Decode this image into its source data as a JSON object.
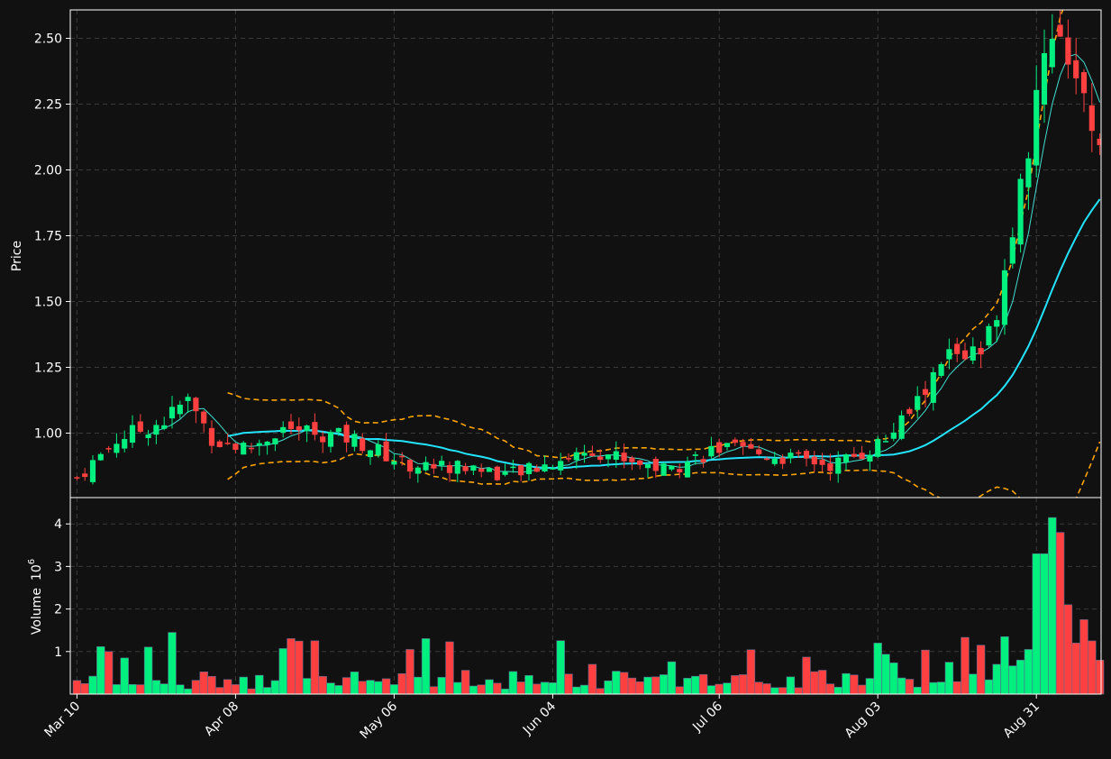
{
  "chart_data": [
    {
      "type": "candlestick",
      "ylabel": "Price",
      "ylim": [
        0.8,
        2.6
      ],
      "yticks": [
        "1.00",
        "1.25",
        "1.50",
        "1.75",
        "2.00",
        "2.25",
        "2.50"
      ],
      "xticks": [
        "Mar 10",
        "Apr 08",
        "May 06",
        "Jun 04",
        "Jul 06",
        "Aug 03",
        "Aug 31"
      ],
      "grid": true,
      "colors": {
        "up": "#00f080",
        "down": "#ff4040",
        "ma_fast": "#3fe0d0",
        "ma_slow": "#22e4ff",
        "band": "#ffa500",
        "background": "#111111"
      },
      "overlays": [
        {
          "name": "moving average (fast)",
          "style": "solid",
          "color": "#3fe0d0"
        },
        {
          "name": "moving average (slow)",
          "style": "solid",
          "color": "#22e4ff"
        },
        {
          "name": "upper band",
          "style": "dashed",
          "color": "#ffa500"
        },
        {
          "name": "lower band",
          "style": "dashed",
          "color": "#ffa500"
        }
      ]
    },
    {
      "type": "bar",
      "ylabel": "Volume",
      "yunit": "10",
      "yunit_exp": "6",
      "ylim": [
        0,
        4.5
      ],
      "yticks": [
        "1",
        "2",
        "3",
        "4"
      ],
      "grid": true
    }
  ]
}
